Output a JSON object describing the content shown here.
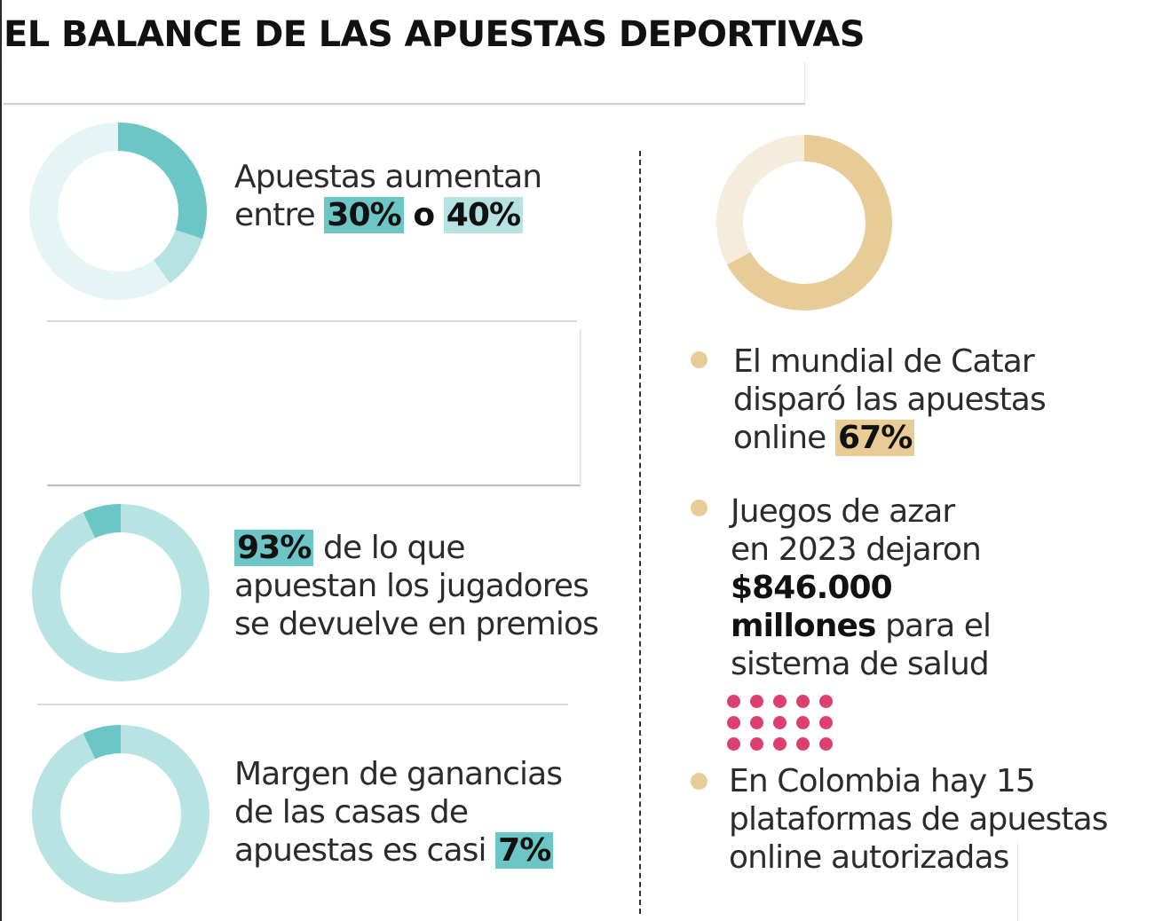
{
  "title": "EL BALANCE DE LAS APUESTAS DEPORTIVAS",
  "stats": {
    "apuestas": {
      "text_before": "Apuestas aumentan",
      "text_mid": "entre",
      "value_a": "30%",
      "connector": "o",
      "value_b": "40%",
      "donut": {
        "range_from": 30,
        "range_to": 40
      }
    },
    "premios": {
      "value": "93%",
      "text_line1": "de lo que",
      "text_line2": "apuestan los jugadores",
      "text_line3": "se devuelve en premios",
      "donut": {
        "percent": 93
      }
    },
    "margen": {
      "text_line1": "Margen de ganancias",
      "text_line2": "de las casas de",
      "text_line3": "apuestas es casi",
      "value": "7%",
      "donut": {
        "percent": 7
      }
    },
    "mundial": {
      "text_line1": "El mundial de Catar",
      "text_line2": "disparó las apuestas",
      "text_line3": "online",
      "value": "67%",
      "donut": {
        "percent": 67
      }
    },
    "azar": {
      "text_line1": "Juegos de azar",
      "text_line2": "en 2023 dejaron",
      "value_line1": "$846.000",
      "value_line2": "millones",
      "text_line3": "para el",
      "text_line4": "sistema de salud",
      "dots": 15
    },
    "plataformas": {
      "text_line1": "En Colombia hay 15",
      "text_line2": "plataformas de apuestas",
      "text_line3": "online autorizadas"
    }
  },
  "colors": {
    "teal_dark": "#6cc6c6",
    "teal_mid": "#b6e2e2",
    "teal_pale": "#e5f4f4",
    "teal_ring": "#b8e3e3",
    "tan": "#e8cc98",
    "tan_pale": "#f6ecdc",
    "pink": "#dd3f6e",
    "bullet": "#e8cc98"
  }
}
